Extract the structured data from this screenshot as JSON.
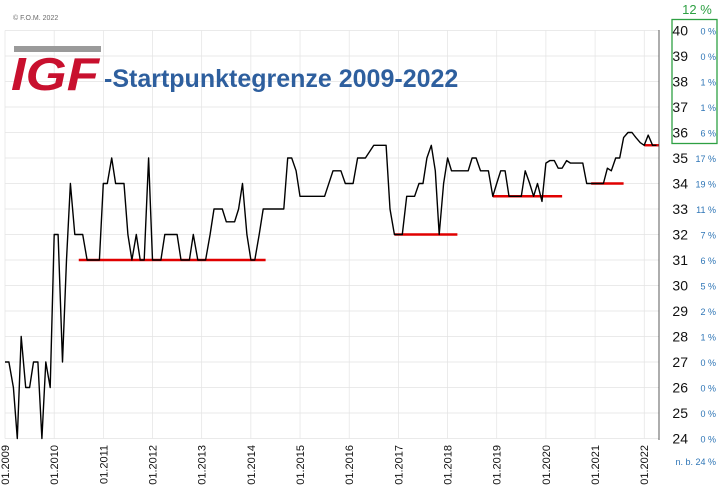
{
  "copyright": "© F.O.M. 2022",
  "logo_text": "IGF",
  "title": "-Startpunktegrenze 2009-2022",
  "colors": {
    "line": "#000000",
    "threshold": "#e00000",
    "title": "#2e5f9e",
    "logo": "#c8102e",
    "logo_bar": "#9a9a9a",
    "percent": "#2e75b6",
    "highlight_box": "#2ea043",
    "grid": "#e3e3e3"
  },
  "chart_data": {
    "type": "line",
    "y_tick_labels": [
      "40",
      "39",
      "38",
      "37",
      "36",
      "35",
      "34",
      "33",
      "32",
      "31",
      "30",
      "29",
      "28",
      "27",
      "26",
      "25",
      "24"
    ],
    "percent_header": "12 %",
    "percent_labels": [
      "0 %",
      "0 %",
      "1 %",
      "1 %",
      "6 %",
      "17 %",
      "19 %",
      "11 %",
      "7 %",
      "6 %",
      "5 %",
      "2 %",
      "1 %",
      "0 %",
      "0 %",
      "0 %",
      "0 %"
    ],
    "percent_footer": "n. b. 24 %",
    "highlighted_levels": [
      "40",
      "39",
      "38",
      "37",
      "36"
    ],
    "x_tick_labels": [
      "01.2009",
      "01.2010",
      "01.2011",
      "01.2012",
      "01.2013",
      "01.2014",
      "01.2015",
      "01.2016",
      "01.2017",
      "01.2018",
      "01.2019",
      "01.2020",
      "01.2021",
      "01.2022"
    ],
    "x_range": [
      2009.0,
      2022.3
    ],
    "y_scale": "categorical levels, top to bottom 40 … 24",
    "grid": true,
    "series": [
      {
        "values": [
          [
            2009.0,
            27
          ],
          [
            2009.08,
            27
          ],
          [
            2009.17,
            26
          ],
          [
            2009.25,
            24
          ],
          [
            2009.33,
            28
          ],
          [
            2009.42,
            26
          ],
          [
            2009.5,
            26
          ],
          [
            2009.58,
            27
          ],
          [
            2009.67,
            27
          ],
          [
            2009.75,
            24
          ],
          [
            2009.83,
            27
          ],
          [
            2009.92,
            26
          ],
          [
            2010.0,
            32
          ],
          [
            2010.08,
            32
          ],
          [
            2010.17,
            27
          ],
          [
            2010.25,
            31
          ],
          [
            2010.33,
            34
          ],
          [
            2010.42,
            32
          ],
          [
            2010.5,
            32
          ],
          [
            2010.58,
            32
          ],
          [
            2010.67,
            31
          ],
          [
            2010.75,
            31
          ],
          [
            2010.83,
            31
          ],
          [
            2010.92,
            31
          ],
          [
            2011.0,
            34
          ],
          [
            2011.08,
            34
          ],
          [
            2011.17,
            35
          ],
          [
            2011.25,
            34
          ],
          [
            2011.33,
            34
          ],
          [
            2011.42,
            34
          ],
          [
            2011.5,
            32
          ],
          [
            2011.58,
            31
          ],
          [
            2011.67,
            32
          ],
          [
            2011.75,
            31
          ],
          [
            2011.83,
            31
          ],
          [
            2011.92,
            35
          ],
          [
            2012.0,
            31
          ],
          [
            2012.08,
            31
          ],
          [
            2012.17,
            31
          ],
          [
            2012.25,
            32
          ],
          [
            2012.33,
            32
          ],
          [
            2012.42,
            32
          ],
          [
            2012.5,
            32
          ],
          [
            2012.58,
            31
          ],
          [
            2012.67,
            31
          ],
          [
            2012.75,
            31
          ],
          [
            2012.83,
            32
          ],
          [
            2012.92,
            31
          ],
          [
            2013.0,
            31
          ],
          [
            2013.08,
            31
          ],
          [
            2013.17,
            32
          ],
          [
            2013.25,
            33
          ],
          [
            2013.33,
            33
          ],
          [
            2013.42,
            33
          ],
          [
            2013.5,
            32.5
          ],
          [
            2013.58,
            32.5
          ],
          [
            2013.67,
            32.5
          ],
          [
            2013.75,
            33
          ],
          [
            2013.83,
            34
          ],
          [
            2013.92,
            32
          ],
          [
            2014.0,
            31
          ],
          [
            2014.08,
            31
          ],
          [
            2014.17,
            32
          ],
          [
            2014.25,
            33
          ],
          [
            2014.33,
            33
          ],
          [
            2014.42,
            33
          ],
          [
            2014.5,
            33
          ],
          [
            2014.58,
            33
          ],
          [
            2014.67,
            33
          ],
          [
            2014.75,
            35
          ],
          [
            2014.83,
            35
          ],
          [
            2014.92,
            34.5
          ],
          [
            2015.0,
            33.5
          ],
          [
            2015.17,
            33.5
          ],
          [
            2015.33,
            33.5
          ],
          [
            2015.5,
            33.5
          ],
          [
            2015.67,
            34.5
          ],
          [
            2015.83,
            34.5
          ],
          [
            2015.92,
            34
          ],
          [
            2016.0,
            34
          ],
          [
            2016.08,
            34
          ],
          [
            2016.17,
            35
          ],
          [
            2016.33,
            35
          ],
          [
            2016.5,
            35.5
          ],
          [
            2016.58,
            35.5
          ],
          [
            2016.67,
            35.5
          ],
          [
            2016.75,
            35.5
          ],
          [
            2016.83,
            33
          ],
          [
            2016.92,
            32
          ],
          [
            2017.0,
            32
          ],
          [
            2017.08,
            32
          ],
          [
            2017.17,
            33.5
          ],
          [
            2017.25,
            33.5
          ],
          [
            2017.33,
            33.5
          ],
          [
            2017.42,
            34
          ],
          [
            2017.5,
            34
          ],
          [
            2017.58,
            35
          ],
          [
            2017.67,
            35.5
          ],
          [
            2017.75,
            34.5
          ],
          [
            2017.83,
            32
          ],
          [
            2017.92,
            34
          ],
          [
            2018.0,
            35
          ],
          [
            2018.08,
            34.5
          ],
          [
            2018.17,
            34.5
          ],
          [
            2018.25,
            34.5
          ],
          [
            2018.33,
            34.5
          ],
          [
            2018.42,
            34.5
          ],
          [
            2018.5,
            35
          ],
          [
            2018.58,
            35
          ],
          [
            2018.67,
            34.5
          ],
          [
            2018.75,
            34.5
          ],
          [
            2018.83,
            34.5
          ],
          [
            2018.92,
            33.5
          ],
          [
            2019.0,
            34
          ],
          [
            2019.08,
            34.5
          ],
          [
            2019.17,
            34.5
          ],
          [
            2019.25,
            33.5
          ],
          [
            2019.33,
            33.5
          ],
          [
            2019.42,
            33.5
          ],
          [
            2019.5,
            33.5
          ],
          [
            2019.58,
            34.5
          ],
          [
            2019.67,
            34
          ],
          [
            2019.75,
            33.5
          ],
          [
            2019.83,
            34
          ],
          [
            2019.92,
            33.3
          ],
          [
            2020.0,
            34.8
          ],
          [
            2020.08,
            34.9
          ],
          [
            2020.17,
            34.9
          ],
          [
            2020.25,
            34.6
          ],
          [
            2020.33,
            34.6
          ],
          [
            2020.42,
            34.9
          ],
          [
            2020.5,
            34.8
          ],
          [
            2020.58,
            34.8
          ],
          [
            2020.67,
            34.8
          ],
          [
            2020.75,
            34.8
          ],
          [
            2020.83,
            34
          ],
          [
            2020.92,
            34
          ],
          [
            2021.0,
            34
          ],
          [
            2021.08,
            34
          ],
          [
            2021.17,
            34
          ],
          [
            2021.25,
            34.6
          ],
          [
            2021.33,
            34.5
          ],
          [
            2021.42,
            35
          ],
          [
            2021.5,
            35
          ],
          [
            2021.58,
            35.8
          ],
          [
            2021.67,
            36
          ],
          [
            2021.75,
            36
          ],
          [
            2021.83,
            35.8
          ],
          [
            2021.92,
            35.6
          ],
          [
            2022.0,
            35.5
          ],
          [
            2022.08,
            35.9
          ],
          [
            2022.17,
            35.5
          ],
          [
            2022.25,
            35.5
          ]
        ]
      }
    ],
    "threshold_segments": [
      {
        "start": 2010.5,
        "end": 2014.3,
        "y": 31
      },
      {
        "start": 2016.92,
        "end": 2018.2,
        "y": 32
      },
      {
        "start": 2018.92,
        "end": 2020.33,
        "y": 33.5
      },
      {
        "start": 2020.92,
        "end": 2021.58,
        "y": 34
      },
      {
        "start": 2022.0,
        "end": 2022.3,
        "y": 35.5
      }
    ]
  }
}
